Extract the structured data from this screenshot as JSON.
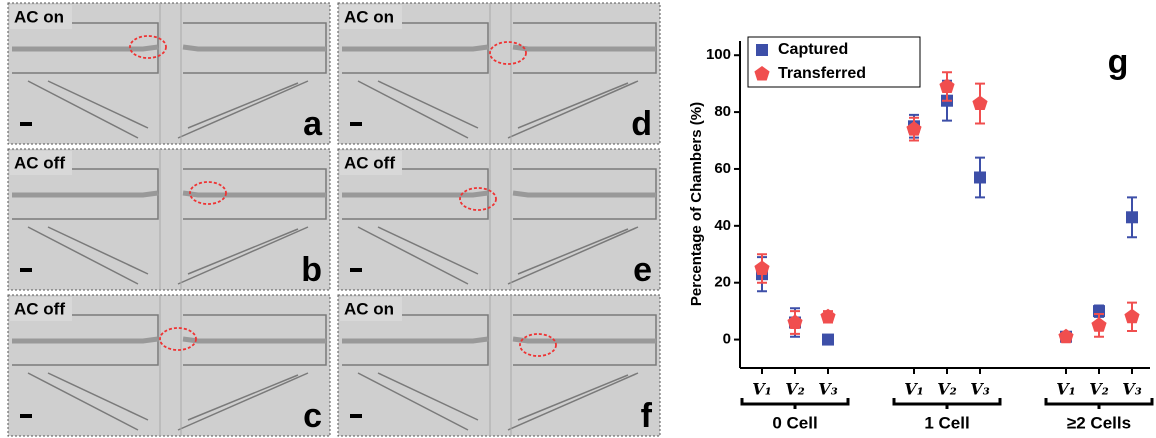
{
  "panels": [
    {
      "label": "AC on",
      "letter": "a"
    },
    {
      "label": "AC on",
      "letter": "d"
    },
    {
      "label": "AC off",
      "letter": "b"
    },
    {
      "label": "AC off",
      "letter": "e"
    },
    {
      "label": "AC off",
      "letter": "c"
    },
    {
      "label": "AC on",
      "letter": "f"
    }
  ],
  "chart_data": {
    "type": "scatter",
    "annotation": "g",
    "ylabel": "Percentage of Chambers (%)",
    "categories": [
      "V₁",
      "V₂",
      "V₃",
      "V₁",
      "V₂",
      "V₃",
      "V₁",
      "V₂",
      "V₃"
    ],
    "groups": [
      "0 Cell",
      "1 Cell",
      "≥2 Cells"
    ],
    "series": [
      {
        "name": "Captured",
        "color": "#3d4fa8",
        "marker": "square",
        "values": [
          23,
          6,
          0,
          75,
          84,
          57,
          1,
          10,
          43
        ],
        "errors": [
          6,
          5,
          0,
          4,
          7,
          7,
          1,
          2,
          7
        ]
      },
      {
        "name": "Transferred",
        "color": "#f04e4e",
        "marker": "pentagon",
        "values": [
          25,
          6,
          8,
          74,
          89,
          83,
          1,
          5,
          8
        ],
        "errors": [
          5,
          4,
          2,
          4,
          5,
          7,
          1,
          4,
          5
        ]
      }
    ],
    "ylim": [
      -10,
      105
    ],
    "yticks": [
      0,
      20,
      40,
      60,
      80,
      100
    ],
    "legend": "upper-left"
  }
}
